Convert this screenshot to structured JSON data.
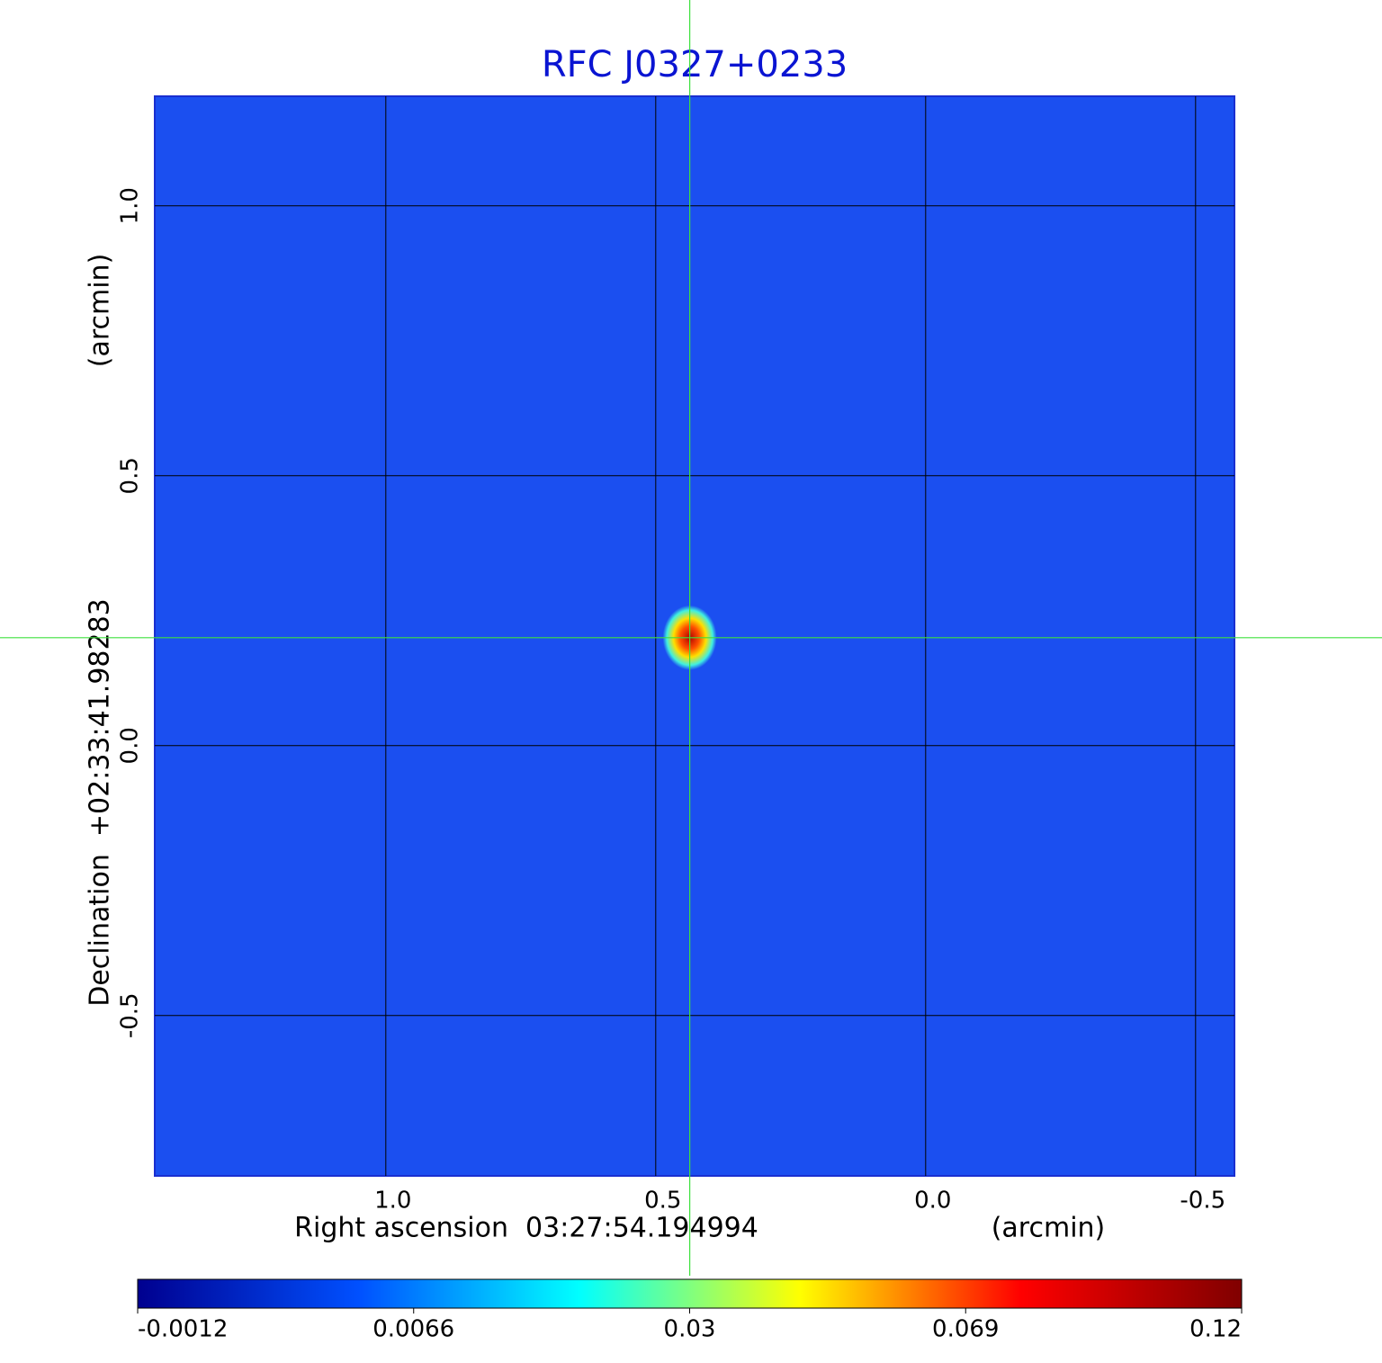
{
  "chart_data": {
    "type": "image",
    "title": "RFC J0327+0233",
    "xlabel": "Right ascension  03:27:54.194994",
    "xunit": "(arcmin)",
    "ylabel": "Declination  +02:33:41.98283",
    "yunit": "(arcmin)",
    "xlim": [
      1.428,
      -0.572
    ],
    "ylim": [
      -0.797,
      1.203
    ],
    "xticks": [
      {
        "value": 1,
        "label": "1.0"
      },
      0.5,
      {
        "value": 0,
        "label": "0.0"
      },
      -0.5
    ],
    "yticks": [
      {
        "value": 1,
        "label": "1.0"
      },
      0.5,
      {
        "value": 0,
        "label": "0.0"
      },
      -0.5
    ],
    "grid": true,
    "crosshair": {
      "x": 0.437,
      "y": 0.2
    },
    "background_color": "#1b4ff0",
    "title_color": "#0a14d2",
    "crosshair_color": "#3ee03e",
    "colorbar": {
      "ticks": [
        -0.0012,
        0.0066,
        0.03,
        0.069,
        0.12
      ],
      "colors": [
        "#00008f",
        "#0050ff",
        "#00ffff",
        "#ffff00",
        "#ff0000",
        "#800000"
      ]
    }
  }
}
